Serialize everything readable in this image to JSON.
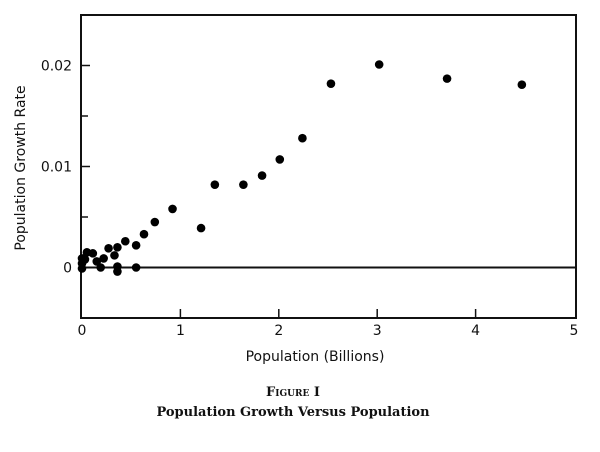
{
  "chart_data": {
    "type": "scatter",
    "title": "",
    "xlabel": "Population (Billions)",
    "ylabel": "Population Growth Rate",
    "xlim": [
      0,
      5
    ],
    "ylim": [
      -0.005,
      0.025
    ],
    "x_ticks": [
      0,
      1,
      2,
      3,
      4,
      5
    ],
    "x_tick_labels": [
      "0",
      "1",
      "2",
      "3",
      "4",
      "5"
    ],
    "y_ticks": [
      0,
      0.01,
      0.02
    ],
    "y_tick_labels": [
      "0",
      "0.01",
      "0.02"
    ],
    "y_minor_ticks": [
      0.005,
      0.015
    ],
    "grid": false,
    "reference_line_y": 0,
    "series": [
      {
        "name": "Population growth",
        "points": [
          [
            3.02,
            0.0201
          ],
          [
            2.53,
            0.0182
          ],
          [
            3.71,
            0.0187
          ],
          [
            4.47,
            0.0181
          ],
          [
            2.24,
            0.0128
          ],
          [
            2.01,
            0.0107
          ],
          [
            1.83,
            0.0091
          ],
          [
            1.64,
            0.0082
          ],
          [
            1.35,
            0.0082
          ],
          [
            1.21,
            0.0039
          ],
          [
            0.92,
            0.0058
          ],
          [
            0.74,
            0.0045
          ],
          [
            0.63,
            0.0033
          ],
          [
            0.55,
            0.0022
          ],
          [
            0.55,
            0.0
          ],
          [
            0.44,
            0.0026
          ],
          [
            0.36,
            0.002
          ],
          [
            0.33,
            0.0012
          ],
          [
            0.36,
            0.0001
          ],
          [
            0.36,
            -0.0004
          ],
          [
            0.27,
            0.0019
          ],
          [
            0.22,
            0.0009
          ],
          [
            0.19,
            0.0
          ],
          [
            0.15,
            0.0006
          ],
          [
            0.11,
            0.0014
          ],
          [
            0.05,
            0.0015
          ],
          [
            0.03,
            0.0008
          ],
          [
            0.0,
            0.0009
          ],
          [
            0.0,
            0.0004
          ],
          [
            0.0,
            -0.0001
          ]
        ]
      }
    ]
  },
  "caption": {
    "figure_label": "Figure I",
    "title": "Population Growth Versus Population"
  }
}
